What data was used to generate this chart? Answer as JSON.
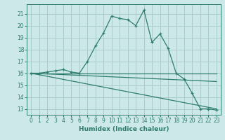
{
  "xlabel": "Humidex (Indice chaleur)",
  "bg_color": "#cce8e8",
  "grid_color": "#aacccc",
  "line_color": "#2e7d6e",
  "xlim": [
    -0.5,
    23.5
  ],
  "ylim": [
    12.5,
    21.8
  ],
  "yticks": [
    13,
    14,
    15,
    16,
    17,
    18,
    19,
    20,
    21
  ],
  "xticks": [
    0,
    1,
    2,
    3,
    4,
    5,
    6,
    7,
    8,
    9,
    10,
    11,
    12,
    13,
    14,
    15,
    16,
    17,
    18,
    19,
    20,
    21,
    22,
    23
  ],
  "series1_x": [
    0,
    1,
    2,
    3,
    4,
    5,
    6,
    7,
    8,
    9,
    10,
    11,
    12,
    13,
    14,
    15,
    16,
    17,
    18,
    19,
    20,
    21,
    22,
    23
  ],
  "series1_y": [
    16.0,
    16.0,
    16.1,
    16.2,
    16.3,
    16.1,
    16.0,
    17.0,
    18.3,
    19.4,
    20.8,
    20.6,
    20.5,
    20.0,
    21.3,
    18.6,
    19.3,
    18.1,
    16.0,
    15.5,
    14.3,
    13.0,
    13.0,
    12.9
  ],
  "series2_x": [
    0,
    23
  ],
  "series2_y": [
    16.0,
    16.0
  ],
  "series3_x": [
    0,
    23
  ],
  "series3_y": [
    16.0,
    15.3
  ],
  "series4_x": [
    0,
    23
  ],
  "series4_y": [
    16.0,
    13.0
  ]
}
